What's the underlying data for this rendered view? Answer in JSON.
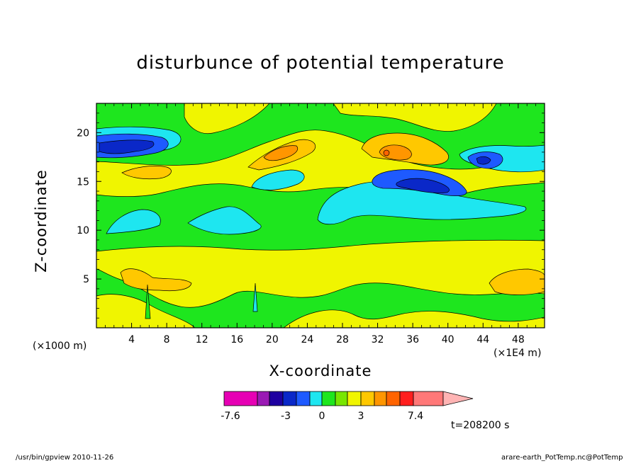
{
  "chart_data": {
    "type": "heatmap",
    "title": "disturbunce of potential temperature",
    "xlabel": "X-coordinate",
    "ylabel": "Z-coordinate",
    "x_unit_left": "(×1000 m)",
    "x_unit_right": "(×1E4 m)",
    "xlim": [
      0,
      51
    ],
    "ylim": [
      0,
      23
    ],
    "x_ticks": [
      4,
      8,
      12,
      16,
      20,
      24,
      28,
      32,
      36,
      40,
      44,
      48
    ],
    "y_ticks": [
      5,
      10,
      15,
      20
    ],
    "time_label": "t=208200 s",
    "colorbar": {
      "colors": [
        "#e600b4",
        "#9a1ab4",
        "#1e00a0",
        "#0a28c8",
        "#1e5aff",
        "#1ee6f0",
        "#1ee61e",
        "#78e600",
        "#f0f500",
        "#ffc800",
        "#ff9600",
        "#ff6400",
        "#ff1e1e",
        "#ff7878",
        "#ffb4b4"
      ],
      "labels": [
        "-7.6",
        "-3",
        "0",
        "3",
        "7.4"
      ]
    },
    "levels_note": "",
    "field": [
      [
        0,
        0,
        0,
        0,
        0,
        0,
        0,
        0,
        0,
        0,
        0,
        0,
        0,
        0,
        0,
        0,
        0,
        0,
        0,
        0,
        0,
        0,
        0,
        0,
        0,
        0,
        0,
        0,
        0,
        0,
        0,
        0,
        0,
        0,
        0,
        0,
        0,
        0,
        0,
        0,
        0,
        0,
        0,
        0,
        0,
        0,
        0,
        0,
        0,
        0,
        0
      ],
      [
        0,
        0,
        0,
        0,
        0,
        0,
        0,
        0,
        1,
        1,
        0,
        0,
        0,
        0,
        0,
        0,
        0,
        0,
        1,
        1,
        1,
        1,
        1,
        1,
        1,
        0,
        0,
        0,
        0,
        0,
        0,
        1,
        1,
        1,
        1,
        1,
        1,
        1,
        0,
        0,
        0,
        0,
        0,
        0,
        0,
        0,
        0,
        0,
        0,
        0,
        0
      ]
    ],
    "footer_left": "/usr/bin/gpview   2010-11-26",
    "footer_right": "arare-earth_PotTemp.nc@PotTemp"
  }
}
